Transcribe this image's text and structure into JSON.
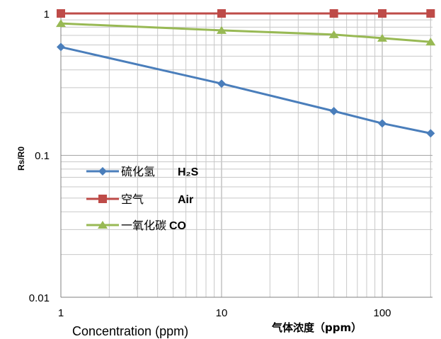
{
  "chart_data": {
    "type": "line",
    "xscale": "log",
    "yscale": "log",
    "xlim": [
      1,
      200
    ],
    "ylim": [
      0.01,
      1
    ],
    "xticks": [
      "1",
      "10",
      "100"
    ],
    "yticks": [
      "0.01",
      "0.1",
      "1"
    ],
    "ylabel": "Rs/R0",
    "xlabel_en": "Concentration (ppm)",
    "xlabel_cn": "气体浓度（ppm）",
    "grid": true,
    "legend_position": "center-left",
    "x": [
      1,
      10,
      50,
      100,
      200
    ],
    "series": [
      {
        "name_cn": "硫化氢",
        "name_en": "H₂S",
        "color": "#4a7ebb",
        "marker": "diamond",
        "values": [
          0.58,
          0.32,
          0.205,
          0.168,
          0.143
        ]
      },
      {
        "name_cn": "空气",
        "name_en": "Air",
        "color": "#be4b48",
        "marker": "square",
        "values": [
          1.0,
          1.0,
          1.0,
          1.0,
          1.0
        ]
      },
      {
        "name_cn": "一氧化碳",
        "name_en": "CO",
        "color": "#98b954",
        "marker": "triangle",
        "values": [
          0.85,
          0.76,
          0.71,
          0.67,
          0.63
        ]
      }
    ]
  }
}
